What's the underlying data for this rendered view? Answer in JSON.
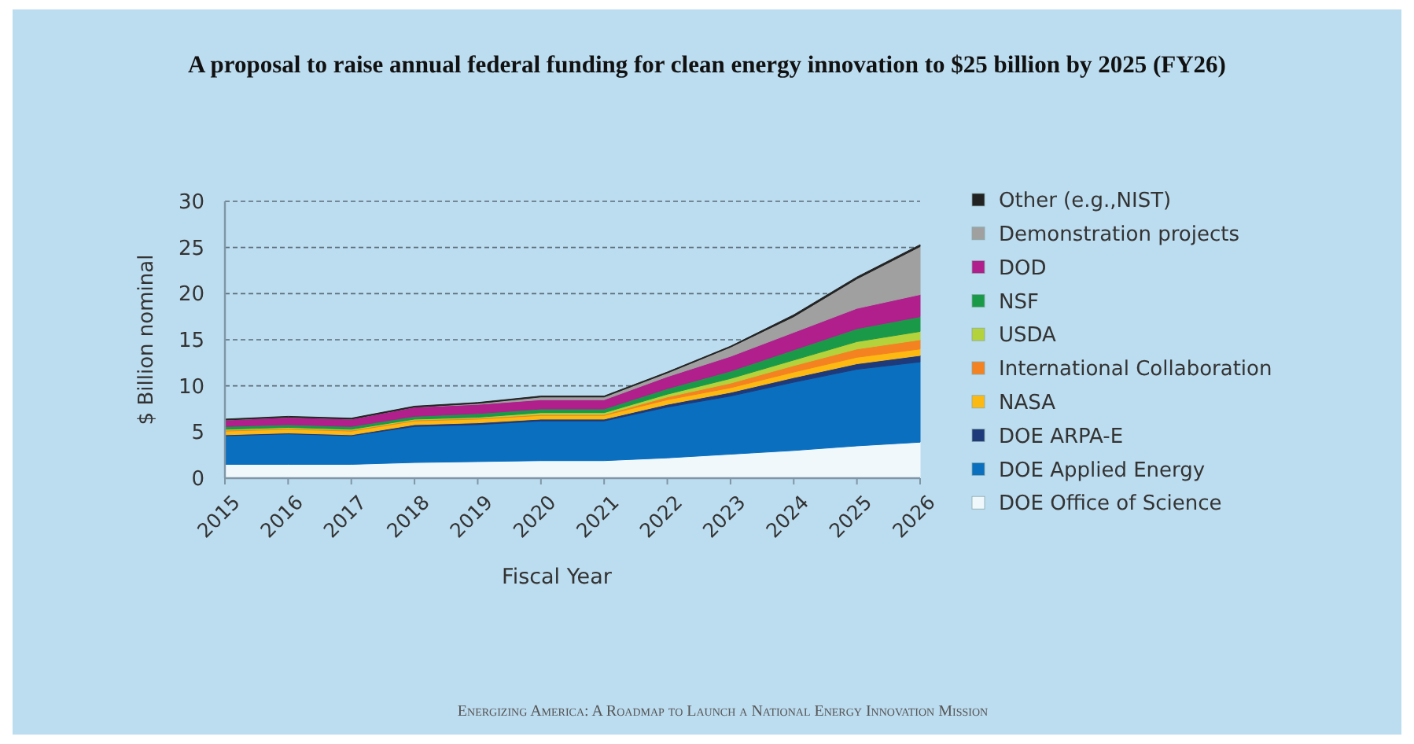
{
  "chart_data": {
    "type": "area",
    "stacked": true,
    "title": "A proposal to raise annual federal funding for clean energy innovation to $25 billion by 2025 (FY26)",
    "xlabel": "Fiscal Year",
    "ylabel": "$ Billion nominal",
    "annotations": [
      "Energizing America: A Roadmap to Launch a National Energy Innovation Mission"
    ],
    "categories": [
      "2015",
      "2016",
      "2017",
      "2018",
      "2019",
      "2020",
      "2021",
      "2022",
      "2023",
      "2024",
      "2025",
      "2026"
    ],
    "ylim": [
      0,
      30
    ],
    "yticks": [
      0,
      5,
      10,
      15,
      20,
      25,
      30
    ],
    "grid": "y",
    "line_style": "dashed",
    "legend": "right",
    "series": [
      {
        "name": "DOE Office of Science",
        "color": "#f0f8fc",
        "values": [
          1.5,
          1.5,
          1.5,
          1.7,
          1.8,
          1.9,
          1.9,
          2.2,
          2.6,
          3.0,
          3.5,
          3.9
        ]
      },
      {
        "name": "DOE Applied Energy",
        "color": "#0a6fbf",
        "values": [
          3.1,
          3.3,
          3.1,
          3.9,
          4.0,
          4.3,
          4.3,
          5.5,
          6.3,
          7.4,
          8.3,
          8.7
        ]
      },
      {
        "name": "DOE ARPA-E",
        "color": "#1f3a7a",
        "values": [
          0.1,
          0.1,
          0.1,
          0.2,
          0.2,
          0.2,
          0.2,
          0.3,
          0.4,
          0.5,
          0.6,
          0.7
        ]
      },
      {
        "name": "NASA",
        "color": "#fdb913",
        "values": [
          0.4,
          0.4,
          0.4,
          0.4,
          0.4,
          0.4,
          0.4,
          0.5,
          0.5,
          0.6,
          0.7,
          0.7
        ]
      },
      {
        "name": "International Collaboration",
        "color": "#f58220",
        "values": [
          0.1,
          0.1,
          0.1,
          0.1,
          0.1,
          0.1,
          0.1,
          0.3,
          0.5,
          0.7,
          0.9,
          1.0
        ]
      },
      {
        "name": "USDA",
        "color": "#b4d23c",
        "values": [
          0.1,
          0.1,
          0.1,
          0.1,
          0.1,
          0.2,
          0.2,
          0.3,
          0.5,
          0.6,
          0.8,
          0.9
        ]
      },
      {
        "name": "NSF",
        "color": "#1a9a48",
        "values": [
          0.3,
          0.3,
          0.3,
          0.3,
          0.4,
          0.4,
          0.4,
          0.6,
          0.8,
          1.1,
          1.4,
          1.6
        ]
      },
      {
        "name": "DOD",
        "color": "#b01f8c",
        "values": [
          0.7,
          0.8,
          0.8,
          1.0,
          1.0,
          1.0,
          1.0,
          1.3,
          1.6,
          1.9,
          2.2,
          2.4
        ]
      },
      {
        "name": "Demonstration projects",
        "color": "#a0a0a0",
        "values": [
          0,
          0,
          0,
          0,
          0.1,
          0.3,
          0.3,
          0.4,
          1.0,
          1.7,
          3.2,
          5.2
        ]
      },
      {
        "name": "Other (e.g.,NIST)",
        "color": "#222222",
        "values": [
          0.1,
          0.1,
          0.1,
          0.1,
          0.1,
          0.1,
          0.1,
          0.1,
          0.1,
          0.2,
          0.2,
          0.2
        ]
      }
    ]
  }
}
